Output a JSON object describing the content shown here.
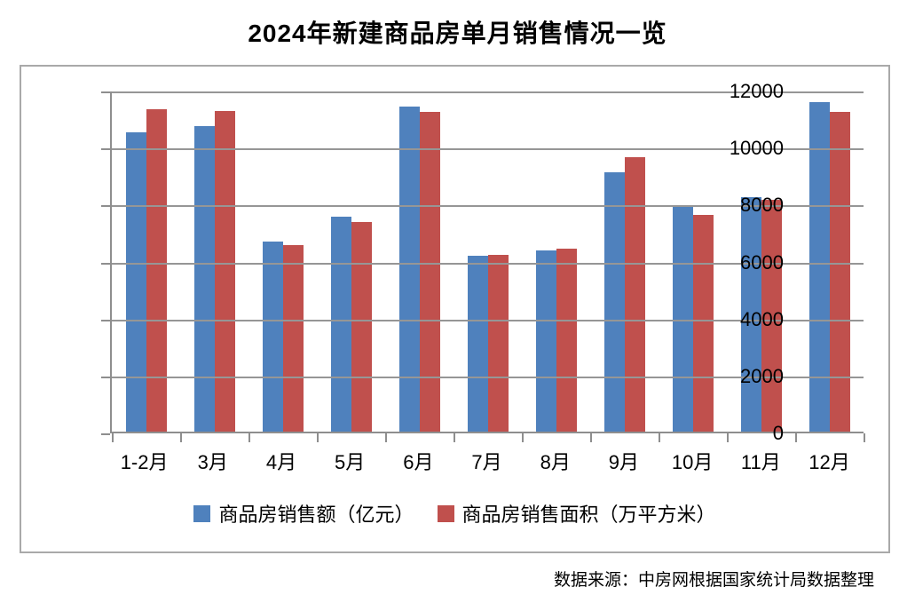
{
  "title": "2024年新建商品房单月销售情况一览",
  "source_note": "数据来源：中房网根据国家统计局数据整理",
  "colors": {
    "series_sales_amount": "#4f81bd",
    "series_sales_area": "#c0504d",
    "gridline": "#969696",
    "axis": "#8e8e8e",
    "frame_border": "#a9a9a9",
    "title_text": "#000000"
  },
  "chart_data": {
    "type": "bar",
    "title": "2024年新建商品房单月销售情况一览",
    "categories": [
      "1-2月",
      "3月",
      "4月",
      "5月",
      "6月",
      "7月",
      "8月",
      "9月",
      "10月",
      "11月",
      "12月"
    ],
    "series": [
      {
        "name": "商品房销售额（亿元）",
        "color": "#4f81bd",
        "values": [
          10566,
          10789,
          6712,
          7598,
          11468,
          6197,
          6393,
          9157,
          7975,
          8270,
          11625
        ]
      },
      {
        "name": "商品房销售面积（万平方米）",
        "color": "#c0504d",
        "values": [
          11369,
          11299,
          6584,
          7390,
          11274,
          6233,
          6453,
          9682,
          7646,
          8188,
          11267
        ]
      }
    ],
    "xlabel": "",
    "ylabel": "",
    "ylim": [
      0,
      12000
    ],
    "yticks": [
      0,
      2000,
      4000,
      6000,
      8000,
      10000,
      12000
    ],
    "grid": true,
    "legend_position": "bottom",
    "annotation": "数据来源：中房网根据国家统计局数据整理"
  }
}
